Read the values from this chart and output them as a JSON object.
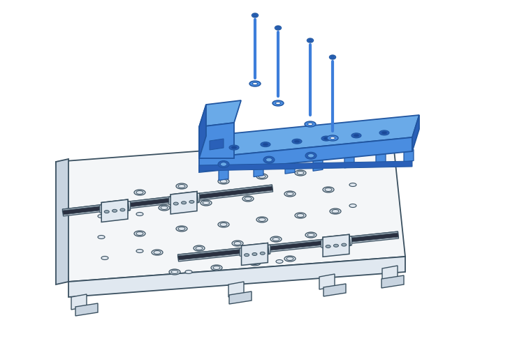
{
  "background_color": "#ffffff",
  "blue": "#3d7edb",
  "blue_mid": "#4a8de0",
  "blue_light": "#6aaae8",
  "blue_dark": "#2a60b8",
  "blue_edge": "#2055a0",
  "outline": "#5a7080",
  "outline_light": "#8aa0b0",
  "outline_dark": "#3a5060",
  "white_fill": "#f4f6f8",
  "white_dark": "#e0e8f0",
  "white_darker": "#c8d4e0",
  "figsize": [
    7.6,
    5.12
  ],
  "dpi": 100
}
